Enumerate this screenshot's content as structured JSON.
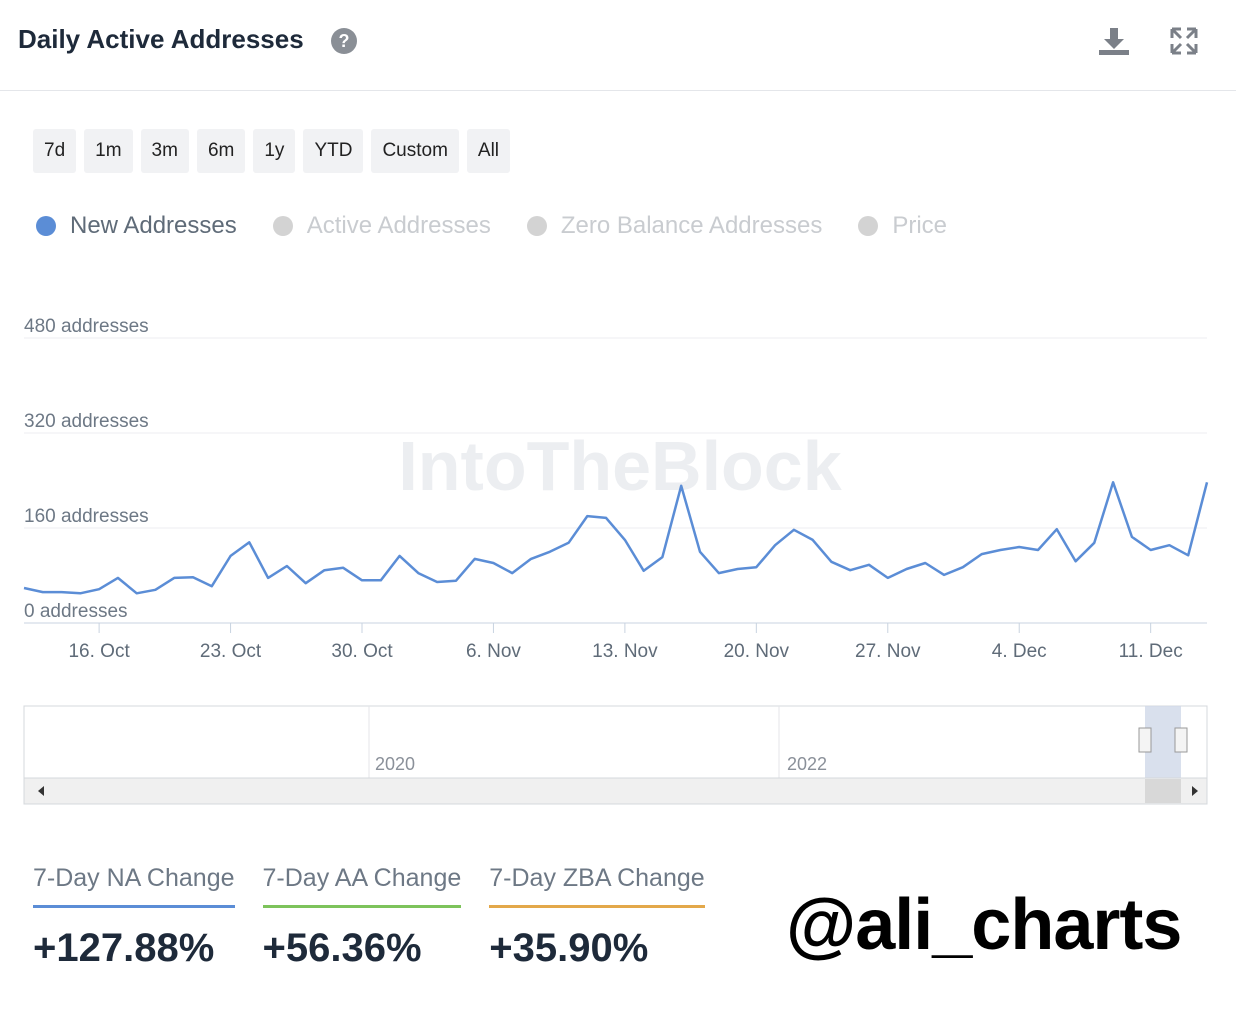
{
  "header": {
    "title": "Daily Active Addresses"
  },
  "range_buttons": [
    "7d",
    "1m",
    "3m",
    "6m",
    "1y",
    "YTD",
    "Custom",
    "All"
  ],
  "legend": [
    {
      "name": "New Addresses",
      "color": "#5b8dd6",
      "active": true
    },
    {
      "name": "Active Addresses",
      "color": "#d3d3d3",
      "active": false
    },
    {
      "name": "Zero Balance Addresses",
      "color": "#d3d3d3",
      "active": false
    },
    {
      "name": "Price",
      "color": "#d3d3d3",
      "active": false
    }
  ],
  "watermark": "IntoTheBlock",
  "chart_data": {
    "type": "line",
    "categories": [
      null,
      null,
      null,
      null,
      "16. Oct",
      null,
      null,
      null,
      null,
      null,
      null,
      "23. Oct",
      null,
      null,
      null,
      null,
      null,
      null,
      "30. Oct",
      null,
      null,
      null,
      null,
      null,
      null,
      "6. Nov",
      null,
      null,
      null,
      null,
      null,
      null,
      "13. Nov",
      null,
      null,
      null,
      null,
      null,
      null,
      "20. Nov",
      null,
      null,
      null,
      null,
      null,
      null,
      "27. Nov",
      null,
      null,
      null,
      null,
      null,
      null,
      "4. Dec",
      null,
      null,
      null,
      null,
      null,
      null,
      "11. Dec",
      null,
      null,
      null
    ],
    "series": [
      {
        "name": "New Addresses",
        "color": "#5b8dd6",
        "values": [
          59,
          52,
          52,
          50,
          57,
          76,
          50,
          56,
          76,
          77,
          62,
          113,
          136,
          76,
          96,
          67,
          89,
          93,
          72,
          72,
          113,
          84,
          69,
          71,
          108,
          101,
          84,
          108,
          120,
          135,
          180,
          177,
          140,
          88,
          111,
          231,
          120,
          84,
          91,
          94,
          131,
          157,
          140,
          103,
          89,
          98,
          76,
          91,
          101,
          81,
          94,
          116,
          123,
          128,
          123,
          158,
          104,
          135,
          237,
          145,
          123,
          131,
          114,
          237
        ]
      }
    ],
    "ylim": [
      0,
      480
    ],
    "yticks": [
      {
        "value": 0,
        "label": "0 addresses"
      },
      {
        "value": 160,
        "label": "160 addresses"
      },
      {
        "value": 320,
        "label": "320 addresses"
      },
      {
        "value": 480,
        "label": "480 addresses"
      }
    ],
    "grid": true
  },
  "navigator": {
    "labels": [
      "2020",
      "2022"
    ]
  },
  "stats": [
    {
      "label": "7-Day NA Change",
      "value": "+127.88%",
      "color": "#5b8dd6"
    },
    {
      "label": "7-Day AA Change",
      "value": "+56.36%",
      "color": "#7dc35b"
    },
    {
      "label": "7-Day ZBA Change",
      "value": "+35.90%",
      "color": "#e3a84a"
    }
  ],
  "signature": "@ali_charts"
}
